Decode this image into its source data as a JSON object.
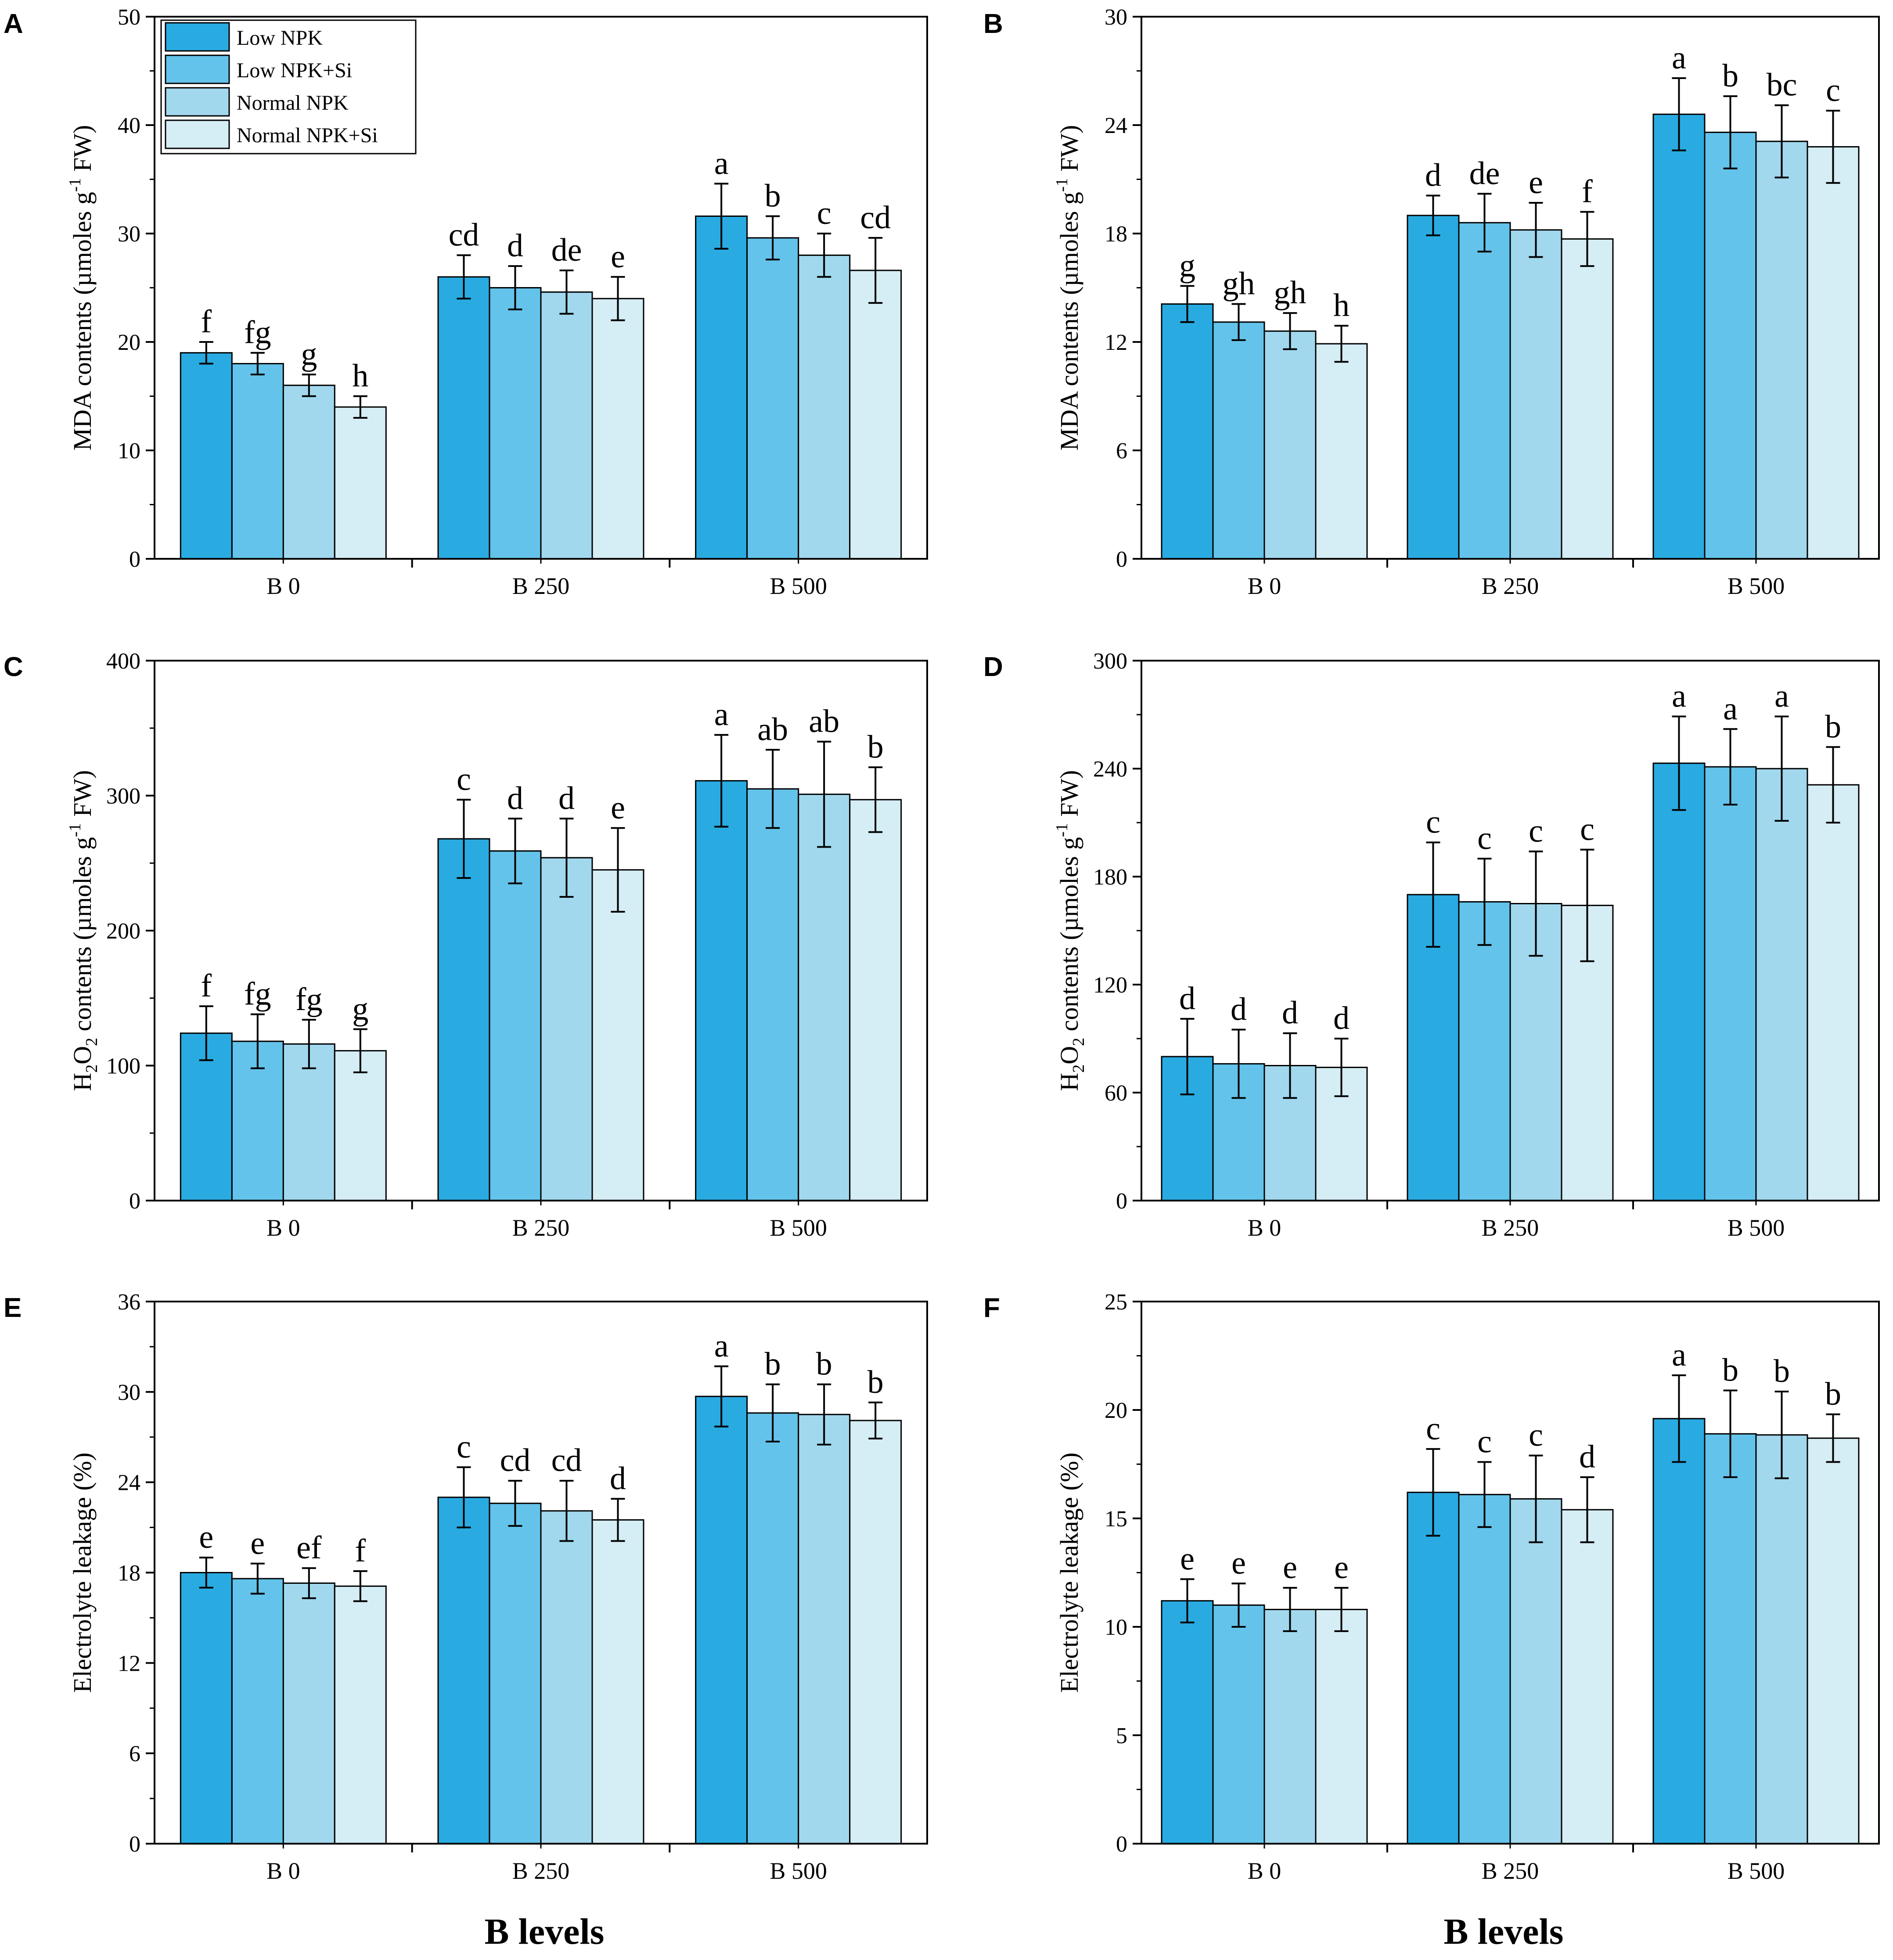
{
  "figure": {
    "x_axis_title": "B levels",
    "colors": [
      "#29abe2",
      "#64c3ea",
      "#a1d8ee",
      "#d5edf5"
    ],
    "legend": [
      "Low NPK",
      "Low NPK+Si",
      "Normal NPK",
      "Normal NPK+Si"
    ]
  },
  "chart_data": [
    {
      "panel": "A",
      "type": "bar",
      "ylabel_pre": "MDA contents (µmoles g",
      "ylabel_sup": "-1",
      "ylabel_post": " FW)",
      "categories": [
        "B 0",
        "B 250",
        "B 500"
      ],
      "ylim": [
        0,
        50
      ],
      "yticks": [
        "0",
        "10",
        "20",
        "30",
        "40",
        "50"
      ],
      "series": [
        {
          "name": "Low NPK",
          "values": [
            19,
            26,
            31.6
          ],
          "errors": [
            1.0,
            2.0,
            3.0
          ],
          "letters": [
            "f",
            "cd",
            "a"
          ]
        },
        {
          "name": "Low NPK+Si",
          "values": [
            18,
            25,
            29.6
          ],
          "errors": [
            1.0,
            2.0,
            2.0
          ],
          "letters": [
            "fg",
            "d",
            "b"
          ]
        },
        {
          "name": "Normal NPK",
          "values": [
            16,
            24.6,
            28
          ],
          "errors": [
            1.0,
            2.0,
            2.0
          ],
          "letters": [
            "g",
            "de",
            "c"
          ]
        },
        {
          "name": "Normal NPK+Si",
          "values": [
            14,
            24,
            26.6
          ],
          "errors": [
            1.0,
            2.0,
            3.0
          ],
          "letters": [
            "h",
            "e",
            "cd"
          ]
        }
      ]
    },
    {
      "panel": "B",
      "type": "bar",
      "ylabel_pre": "MDA contents (µmoles g",
      "ylabel_sup": "-1",
      "ylabel_post": " FW)",
      "categories": [
        "B 0",
        "B 250",
        "B 500"
      ],
      "ylim": [
        0,
        30
      ],
      "yticks": [
        "0",
        "6",
        "12",
        "18",
        "24",
        "30"
      ],
      "series": [
        {
          "name": "Low NPK",
          "values": [
            14.1,
            19,
            24.6
          ],
          "errors": [
            1.0,
            1.1,
            2.0
          ],
          "letters": [
            "g",
            "d",
            "a"
          ]
        },
        {
          "name": "Low NPK+Si",
          "values": [
            13.1,
            18.6,
            23.6
          ],
          "errors": [
            1.0,
            1.6,
            2.0
          ],
          "letters": [
            "gh",
            "de",
            "b"
          ]
        },
        {
          "name": "Normal NPK",
          "values": [
            12.6,
            18.2,
            23.1
          ],
          "errors": [
            1.0,
            1.5,
            2.0
          ],
          "letters": [
            "gh",
            "e",
            "bc"
          ]
        },
        {
          "name": "Normal NPK+Si",
          "values": [
            11.9,
            17.7,
            22.8
          ],
          "errors": [
            1.0,
            1.5,
            2.0
          ],
          "letters": [
            "h",
            "f",
            "c"
          ]
        }
      ]
    },
    {
      "panel": "C",
      "type": "bar",
      "ylabel_pre": "H",
      "ylabel_sub1": "2",
      "ylabel_mid": "O",
      "ylabel_sub2": "2",
      "ylabel_pre2": " contents (µmoles g",
      "ylabel_sup": "-1",
      "ylabel_post": " FW)",
      "categories": [
        "B 0",
        "B 250",
        "B 500"
      ],
      "ylim": [
        0,
        400
      ],
      "yticks": [
        "0",
        "100",
        "200",
        "300",
        "400"
      ],
      "series": [
        {
          "name": "Low NPK",
          "values": [
            124,
            268,
            311
          ],
          "errors": [
            20,
            29,
            34
          ],
          "letters": [
            "f",
            "c",
            "a"
          ]
        },
        {
          "name": "Low NPK+Si",
          "values": [
            118,
            259,
            305
          ],
          "errors": [
            20,
            24,
            29
          ],
          "letters": [
            "fg",
            "d",
            "ab"
          ]
        },
        {
          "name": "Normal NPK",
          "values": [
            116,
            254,
            301
          ],
          "errors": [
            18,
            29,
            39
          ],
          "letters": [
            "fg",
            "d",
            "ab"
          ]
        },
        {
          "name": "Normal NPK+Si",
          "values": [
            111,
            245,
            297
          ],
          "errors": [
            16,
            31,
            24
          ],
          "letters": [
            "g",
            "e",
            "b"
          ]
        }
      ]
    },
    {
      "panel": "D",
      "type": "bar",
      "ylabel_pre": "H",
      "ylabel_sub1": "2",
      "ylabel_mid": "O",
      "ylabel_sub2": "2",
      "ylabel_pre2": " contents (µmoles g",
      "ylabel_sup": "-1",
      "ylabel_post": " FW)",
      "categories": [
        "B 0",
        "B 250",
        "B 500"
      ],
      "ylim": [
        0,
        300
      ],
      "yticks": [
        "0",
        "60",
        "120",
        "180",
        "240",
        "300"
      ],
      "series": [
        {
          "name": "Low NPK",
          "values": [
            80,
            170,
            243
          ],
          "errors": [
            21,
            29,
            26
          ],
          "letters": [
            "d",
            "c",
            "a"
          ]
        },
        {
          "name": "Low NPK+Si",
          "values": [
            76,
            166,
            241
          ],
          "errors": [
            19,
            24,
            21
          ],
          "letters": [
            "d",
            "c",
            "a"
          ]
        },
        {
          "name": "Normal NPK",
          "values": [
            75,
            165,
            240
          ],
          "errors": [
            18,
            29,
            29
          ],
          "letters": [
            "d",
            "c",
            "a"
          ]
        },
        {
          "name": "Normal NPK+Si",
          "values": [
            74,
            164,
            231
          ],
          "errors": [
            16,
            31,
            21
          ],
          "letters": [
            "d",
            "c",
            "b"
          ]
        }
      ]
    },
    {
      "panel": "E",
      "type": "bar",
      "ylabel_pre": "Electrolyte leakage (%)",
      "categories": [
        "B 0",
        "B 250",
        "B 500"
      ],
      "ylim": [
        0,
        36
      ],
      "yticks": [
        "0",
        "6",
        "12",
        "18",
        "24",
        "30",
        "36"
      ],
      "series": [
        {
          "name": "Low NPK",
          "values": [
            18,
            23,
            29.7
          ],
          "errors": [
            1.0,
            2.0,
            2.0
          ],
          "letters": [
            "e",
            "c",
            "a"
          ]
        },
        {
          "name": "Low NPK+Si",
          "values": [
            17.6,
            22.6,
            28.6
          ],
          "errors": [
            1.0,
            1.5,
            1.9
          ],
          "letters": [
            "e",
            "cd",
            "b"
          ]
        },
        {
          "name": "Normal NPK",
          "values": [
            17.3,
            22.1,
            28.5
          ],
          "errors": [
            1.0,
            2.0,
            2.0
          ],
          "letters": [
            "ef",
            "cd",
            "b"
          ]
        },
        {
          "name": "Normal NPK+Si",
          "values": [
            17.1,
            21.5,
            28.1
          ],
          "errors": [
            1.0,
            1.4,
            1.2
          ],
          "letters": [
            "f",
            "d",
            "b"
          ]
        }
      ]
    },
    {
      "panel": "F",
      "type": "bar",
      "ylabel_pre": "Electrolyte leakage (%)",
      "categories": [
        "B 0",
        "B 250",
        "B 500"
      ],
      "ylim": [
        0,
        25
      ],
      "yticks": [
        "0",
        "5",
        "10",
        "15",
        "20",
        "25"
      ],
      "series": [
        {
          "name": "Low NPK",
          "values": [
            11.2,
            16.2,
            19.6
          ],
          "errors": [
            1.0,
            2.0,
            2.0
          ],
          "letters": [
            "e",
            "c",
            "a"
          ]
        },
        {
          "name": "Low NPK+Si",
          "values": [
            11,
            16.1,
            18.9
          ],
          "errors": [
            1.0,
            1.5,
            2.0
          ],
          "letters": [
            "e",
            "c",
            "b"
          ]
        },
        {
          "name": "Normal NPK",
          "values": [
            10.8,
            15.9,
            18.85
          ],
          "errors": [
            1.0,
            2.0,
            2.0
          ],
          "letters": [
            "e",
            "c",
            "b"
          ]
        },
        {
          "name": "Normal NPK+Si",
          "values": [
            10.8,
            15.4,
            18.7
          ],
          "errors": [
            1.0,
            1.5,
            1.1
          ],
          "letters": [
            "e",
            "d",
            "b"
          ]
        }
      ]
    }
  ]
}
